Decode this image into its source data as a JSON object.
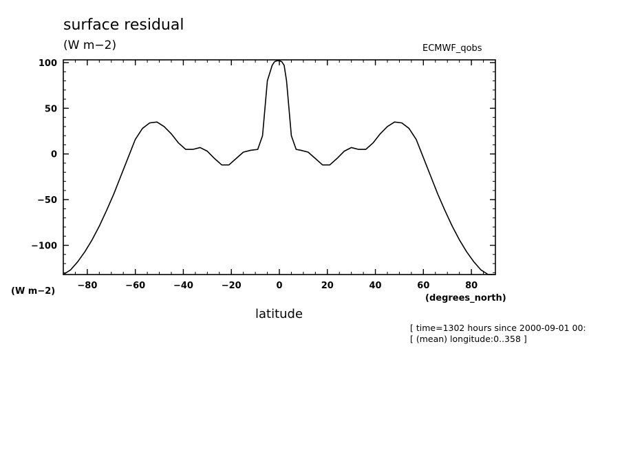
{
  "chart_data": {
    "type": "line",
    "title": "surface residual",
    "units": "(W m−2)",
    "source": "ECMWF_qobs",
    "xlabel": "latitude",
    "x_unit": "(degrees_north)",
    "y_unit": "(W m−2)",
    "xlim": [
      -90,
      90
    ],
    "ylim": [
      -132,
      103
    ],
    "x_ticks": [
      -80,
      -60,
      -40,
      -20,
      0,
      20,
      40,
      60,
      80
    ],
    "x_tick_labels": [
      "−80",
      "−60",
      "−40",
      "−20",
      "0",
      "20",
      "40",
      "60",
      "80"
    ],
    "y_ticks": [
      -100,
      -50,
      0,
      50,
      100
    ],
    "y_tick_labels": [
      "−100",
      "−50",
      "0",
      "50",
      "100"
    ],
    "grid": false,
    "series": [
      {
        "x": [
          -90,
          -87,
          -84,
          -81,
          -78,
          -75,
          -72,
          -69,
          -66,
          -63,
          -60,
          -57,
          -54,
          -51,
          -48,
          -45,
          -42,
          -39,
          -36,
          -33,
          -30,
          -27,
          -24,
          -21,
          -18,
          -15,
          -12,
          -9,
          -7,
          -5,
          -3,
          -2,
          -1,
          0,
          1,
          2,
          3,
          5,
          7,
          9,
          12,
          15,
          18,
          21,
          24,
          27,
          30,
          33,
          36,
          39,
          42,
          45,
          48,
          51,
          54,
          57,
          60,
          63,
          66,
          69,
          72,
          75,
          78,
          81,
          84,
          87,
          90
        ],
        "y": [
          -132,
          -127,
          -118,
          -107,
          -94,
          -79,
          -62,
          -44,
          -24,
          -4,
          16,
          28,
          34,
          35,
          30,
          22,
          12,
          5,
          5,
          7,
          3,
          -5,
          -12,
          -12,
          -5,
          2,
          4,
          5,
          20,
          80,
          97,
          101,
          102,
          102,
          101,
          97,
          80,
          20,
          5,
          4,
          2,
          -5,
          -12,
          -12,
          -5,
          3,
          7,
          5,
          5,
          12,
          22,
          30,
          35,
          34,
          28,
          16,
          -4,
          -24,
          -44,
          -62,
          -79,
          -94,
          -107,
          -118,
          -127,
          -132,
          -132
        ]
      }
    ]
  },
  "footer": {
    "meta_line_1": "[ time=1302 hours since 2000-09-01 00:",
    "meta_line_2": "[ (mean) longitude:0..358 ]"
  }
}
